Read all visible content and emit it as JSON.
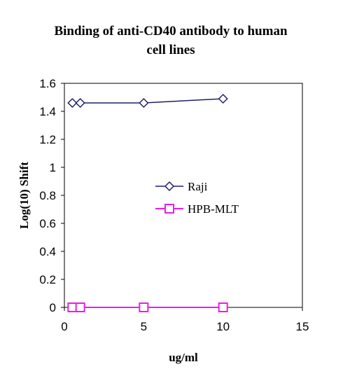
{
  "chart_data": {
    "type": "line",
    "title_lines": [
      "Binding of anti-CD40 antibody to human",
      "cell lines"
    ],
    "xlabel": "ug/ml",
    "ylabel": "Log(10) Shift",
    "xlim": [
      0,
      15
    ],
    "ylim": [
      0,
      1.6
    ],
    "x_ticks": [
      0,
      5,
      10,
      15
    ],
    "x_tick_labels": [
      "0",
      "5",
      "10",
      "15"
    ],
    "y_ticks": [
      0,
      0.2,
      0.4,
      0.6,
      0.8,
      1.0,
      1.2,
      1.4,
      1.6
    ],
    "y_tick_labels": [
      "0",
      "0.2",
      "0.4",
      "0.6",
      "0.8",
      "1",
      "1.2",
      "1.4",
      "1.6"
    ],
    "grid": false,
    "legend_position": "center-right",
    "series": [
      {
        "name": "Raji",
        "marker": "diamond",
        "color": "#1F1F6E",
        "x": [
          0.5,
          1,
          5,
          10
        ],
        "y": [
          1.46,
          1.46,
          1.46,
          1.49
        ]
      },
      {
        "name": "HPB-MLT",
        "marker": "square",
        "color": "#E81EE8",
        "x": [
          0.5,
          1,
          5,
          10
        ],
        "y": [
          0,
          0,
          0,
          0
        ]
      }
    ]
  }
}
